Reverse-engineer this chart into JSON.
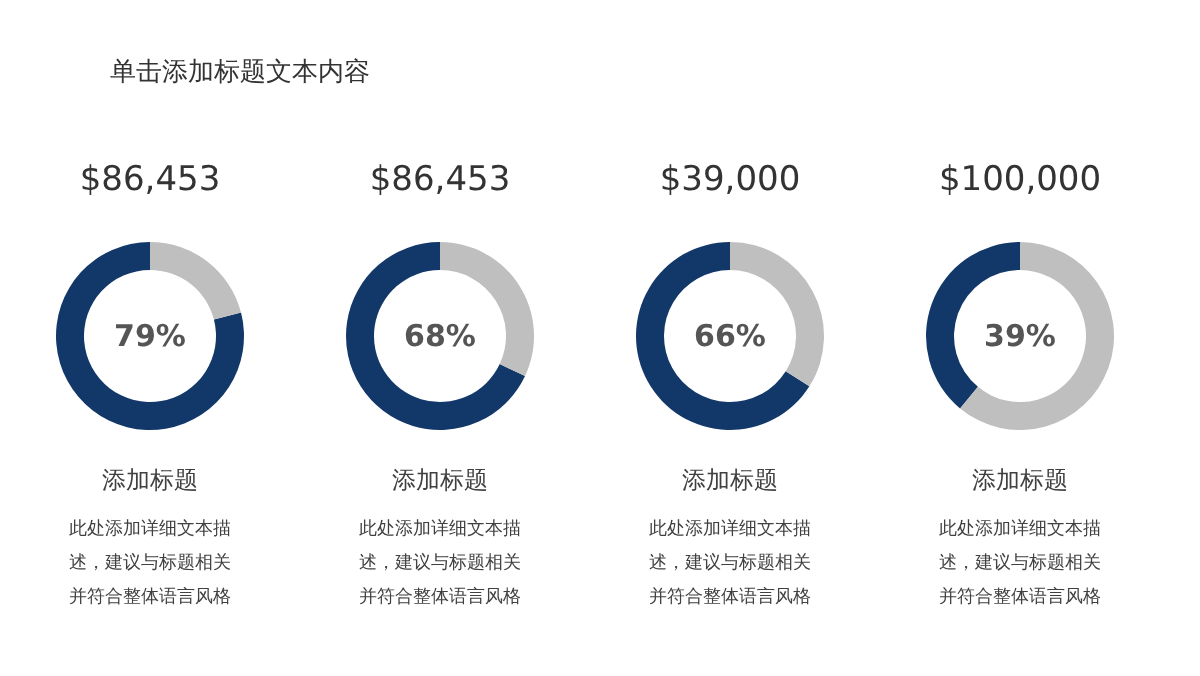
{
  "chart_data": [
    {
      "type": "other",
      "title": "单击添加标题文本内容"
    },
    {
      "type": "donut",
      "title": "$86,453",
      "categories": [
        null,
        null
      ],
      "values": [
        79,
        21
      ],
      "colors": [
        "#123769",
        "#bfbfbf"
      ],
      "annotations": [
        "79%",
        "添加标题",
        "此处添加详细文本描述，建议与标题相关并符合整体语言风格"
      ]
    },
    {
      "type": "donut",
      "title": "$86,453",
      "categories": [
        null,
        null
      ],
      "values": [
        68,
        32
      ],
      "colors": [
        "#123769",
        "#bfbfbf"
      ],
      "annotations": [
        "68%",
        "添加标题",
        "此处添加详细文本描述，建议与标题相关并符合整体语言风格"
      ]
    },
    {
      "type": "donut",
      "title": "$39,000",
      "categories": [
        null,
        null
      ],
      "values": [
        66,
        34
      ],
      "colors": [
        "#123769",
        "#bfbfbf"
      ],
      "annotations": [
        "66%",
        "添加标题",
        "此处添加详细文本描述，建议与标题相关并符合整体语言风格"
      ]
    },
    {
      "type": "donut",
      "title": "$100,000",
      "categories": [
        null,
        null
      ],
      "values": [
        39,
        61
      ],
      "colors": [
        "#123769",
        "#bfbfbf"
      ],
      "annotations": [
        "39%",
        "添加标题",
        "此处添加详细文本描述，建议与标题相关并符合整体语言风格"
      ]
    }
  ]
}
